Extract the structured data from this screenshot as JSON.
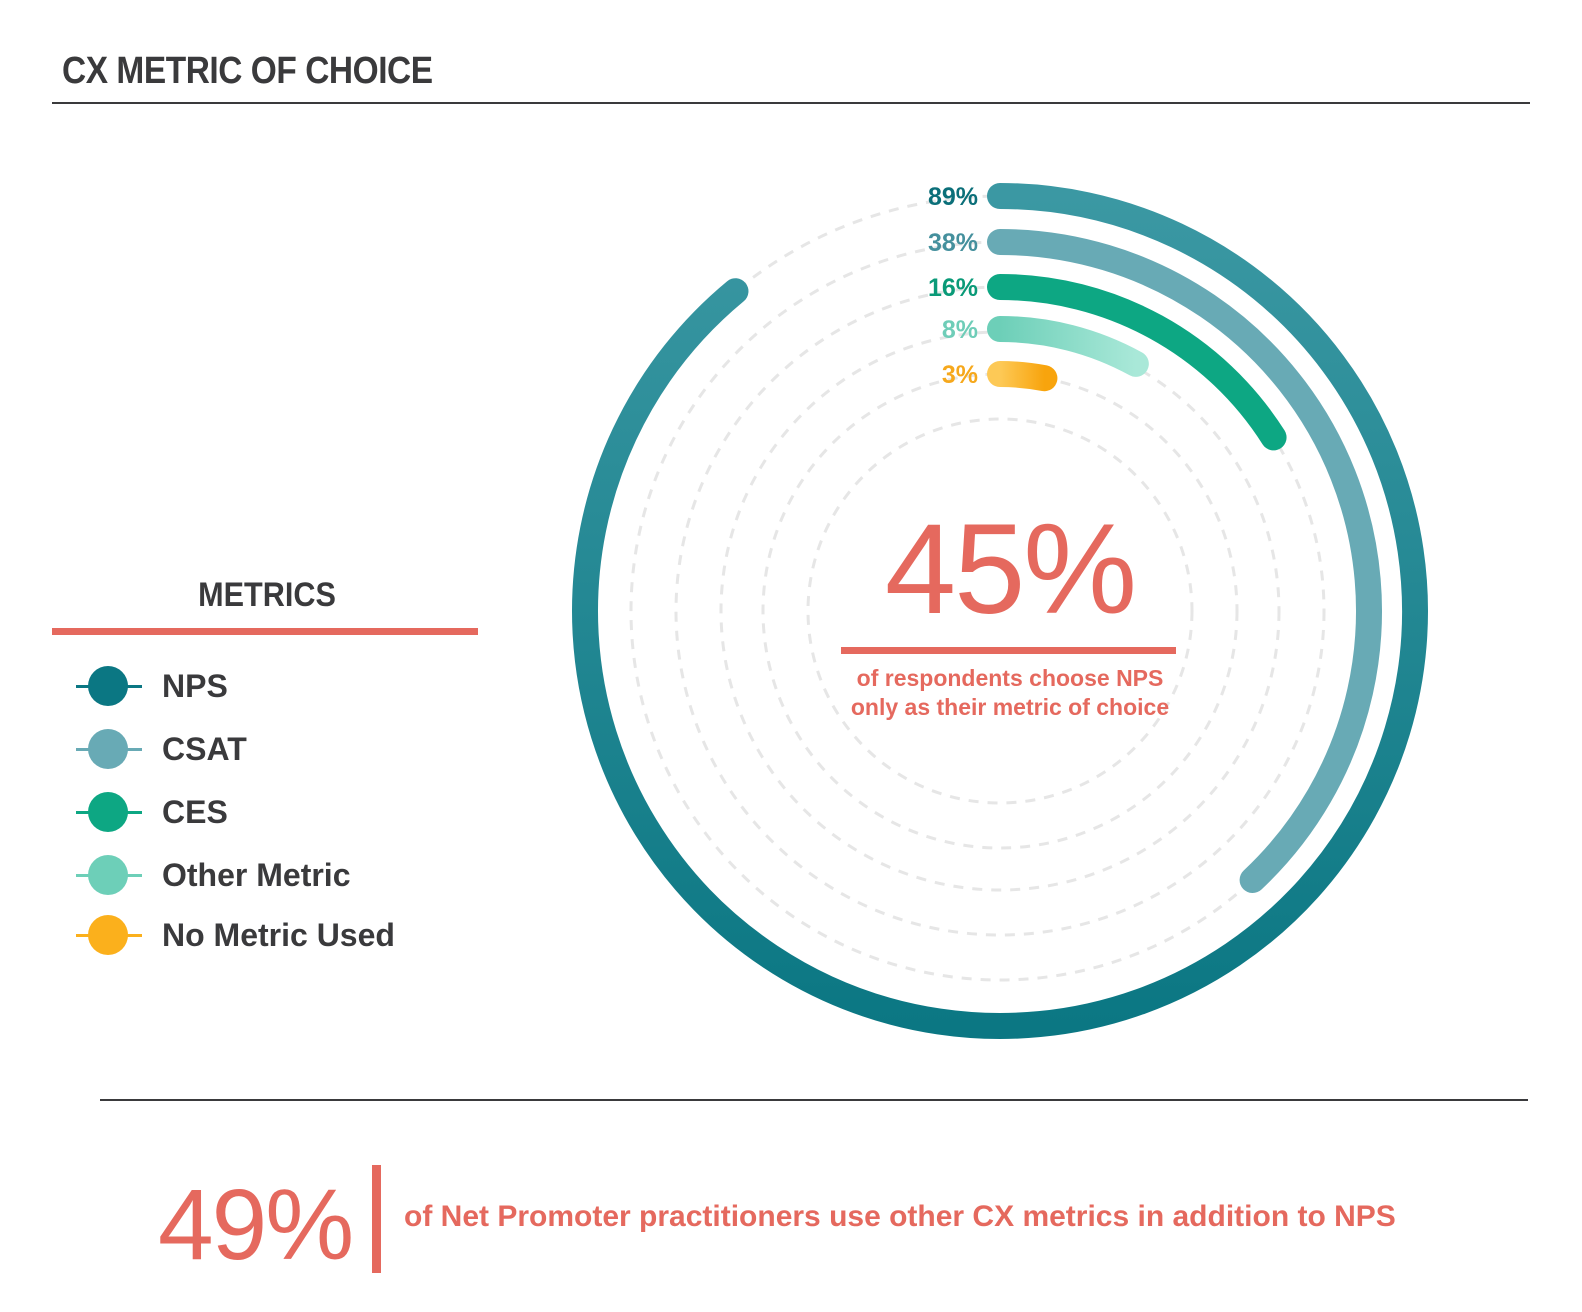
{
  "title": "CX METRIC OF CHOICE",
  "legend": {
    "title": "METRICS",
    "items": [
      {
        "label": "NPS",
        "color": "#0b7783"
      },
      {
        "label": "CSAT",
        "color": "#68aab5"
      },
      {
        "label": "CES",
        "color": "#0da783"
      },
      {
        "label": "Other Metric",
        "color": "#6dcfb8"
      },
      {
        "label": "No Metric Used",
        "color": "#fbb01c"
      }
    ]
  },
  "chart_data": {
    "type": "radial-bar",
    "series": [
      {
        "name": "NPS",
        "value": 89,
        "label": "89%",
        "color": "#0b7783",
        "label_color": "#0b6f79"
      },
      {
        "name": "CSAT",
        "value": 38,
        "label": "38%",
        "color": "#68aab5",
        "label_color": "#45909d"
      },
      {
        "name": "CES",
        "value": 16,
        "label": "16%",
        "color": "#0da783",
        "label_color": "#0a9a78"
      },
      {
        "name": "Other Metric",
        "value": 8,
        "label": "8%",
        "color": "#8fddca",
        "label_color": "#6fcdb8"
      },
      {
        "name": "No Metric Used",
        "value": 3,
        "label": "3%",
        "color": "#fbb01c",
        "label_color": "#f6a81c"
      }
    ],
    "max": 100
  },
  "center": {
    "value": "45%",
    "caption_line1": "of respondents choose NPS",
    "caption_line2": "only as their metric of choice"
  },
  "bottom": {
    "value": "49%",
    "caption": "of Net Promoter practitioners use other CX metrics in addition to NPS"
  },
  "colors": {
    "accent": "#e5695e",
    "text": "#3a3a3c",
    "track": "#e6e6e6"
  }
}
